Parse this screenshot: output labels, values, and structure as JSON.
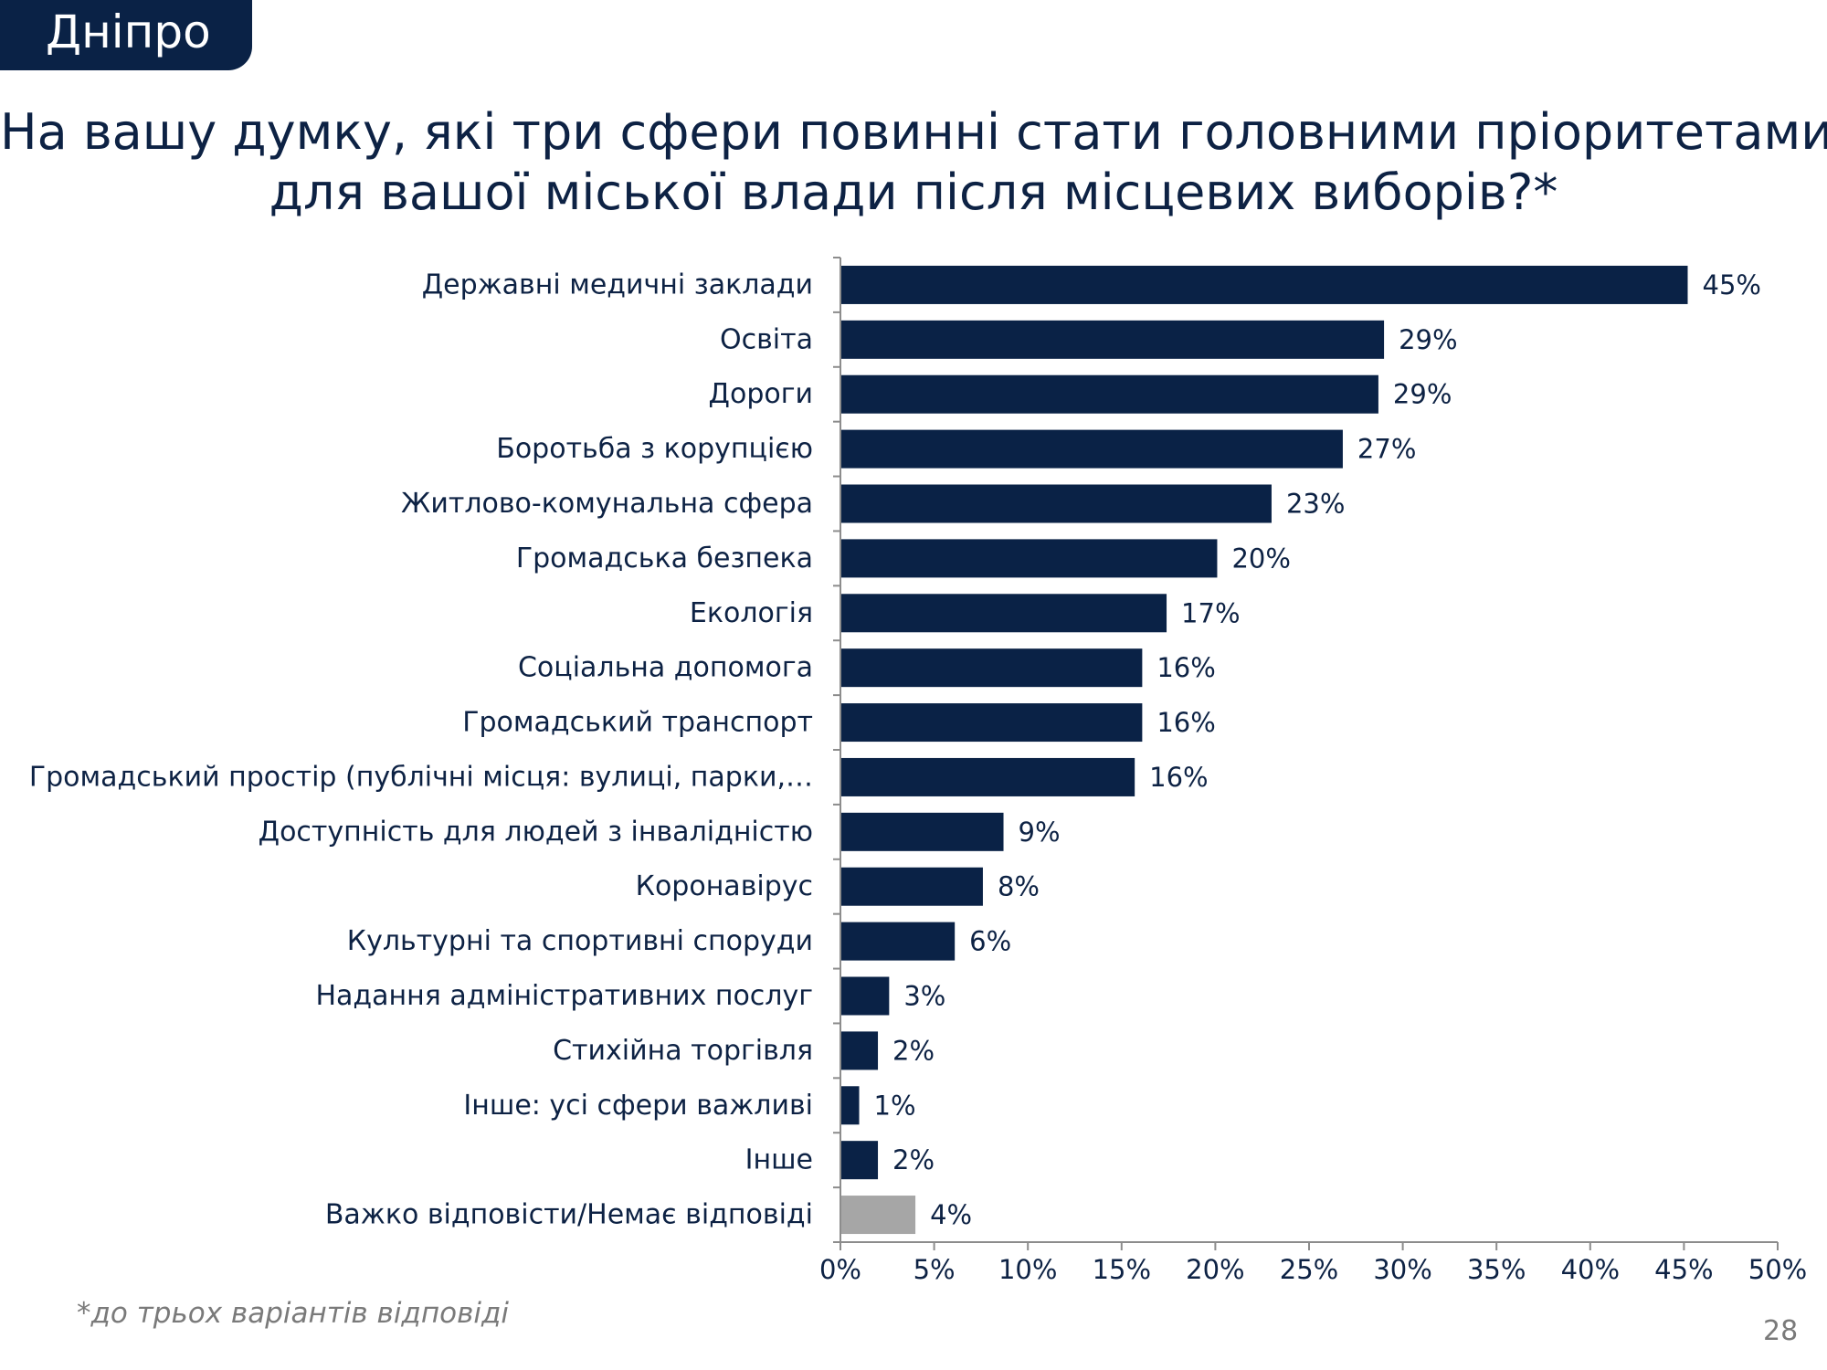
{
  "city_label": "Дніпро",
  "title_line1": "На вашу думку, які три сфери повинні стати головними пріоритетами",
  "title_line2": "для  вашої міської влади після місцевих виборів?*",
  "footnote": "*до трьох варіантів відповіді",
  "page_number": "28",
  "colors": {
    "primary_bar": "#0a2246",
    "neutral_bar": "#a6a6a6",
    "text": "#0d2244"
  },
  "chart_data": {
    "type": "bar",
    "orientation": "horizontal",
    "title": "На вашу думку, які три сфери повинні стати головними пріоритетами для  вашої міської влади після місцевих виборів?*",
    "xlim": [
      0,
      50
    ],
    "ticks": [
      "0%",
      "5%",
      "10%",
      "15%",
      "20%",
      "25%",
      "30%",
      "35%",
      "40%",
      "45%",
      "50%"
    ],
    "grid": false,
    "legend": "none",
    "categories": [
      "Державні медичні заклади",
      "Освіта",
      "Дороги",
      "Боротьба з корупцією",
      "Житлово-комунальна сфера",
      "Громадська безпека",
      "Екологія",
      "Соціальна допомога",
      "Громадський транспорт",
      "Громадський простір (публічні місця: вулиці, парки,…",
      "Доступність для людей з інвалідністю",
      "Коронавірус",
      "Культурні та спортивні споруди",
      "Надання адміністративних послуг",
      "Стихійна торгівля",
      "Інше: усі сфери важливі",
      "Інше",
      "Важко відповісти/Немає відповіді"
    ],
    "values": [
      45,
      29,
      29,
      27,
      23,
      20,
      17,
      16,
      16,
      16,
      9,
      8,
      6,
      3,
      2,
      1,
      2,
      4
    ],
    "plotted_values": [
      45.2,
      29.0,
      28.7,
      26.8,
      23.0,
      20.1,
      17.4,
      16.1,
      16.1,
      15.7,
      8.7,
      7.6,
      6.1,
      2.6,
      2.0,
      1.0,
      2.0,
      4.0
    ],
    "value_labels": [
      "45%",
      "29%",
      "29%",
      "27%",
      "23%",
      "20%",
      "17%",
      "16%",
      "16%",
      "16%",
      "9%",
      "8%",
      "6%",
      "3%",
      "2%",
      "1%",
      "2%",
      "4%"
    ],
    "neutral_category_index": 17
  }
}
